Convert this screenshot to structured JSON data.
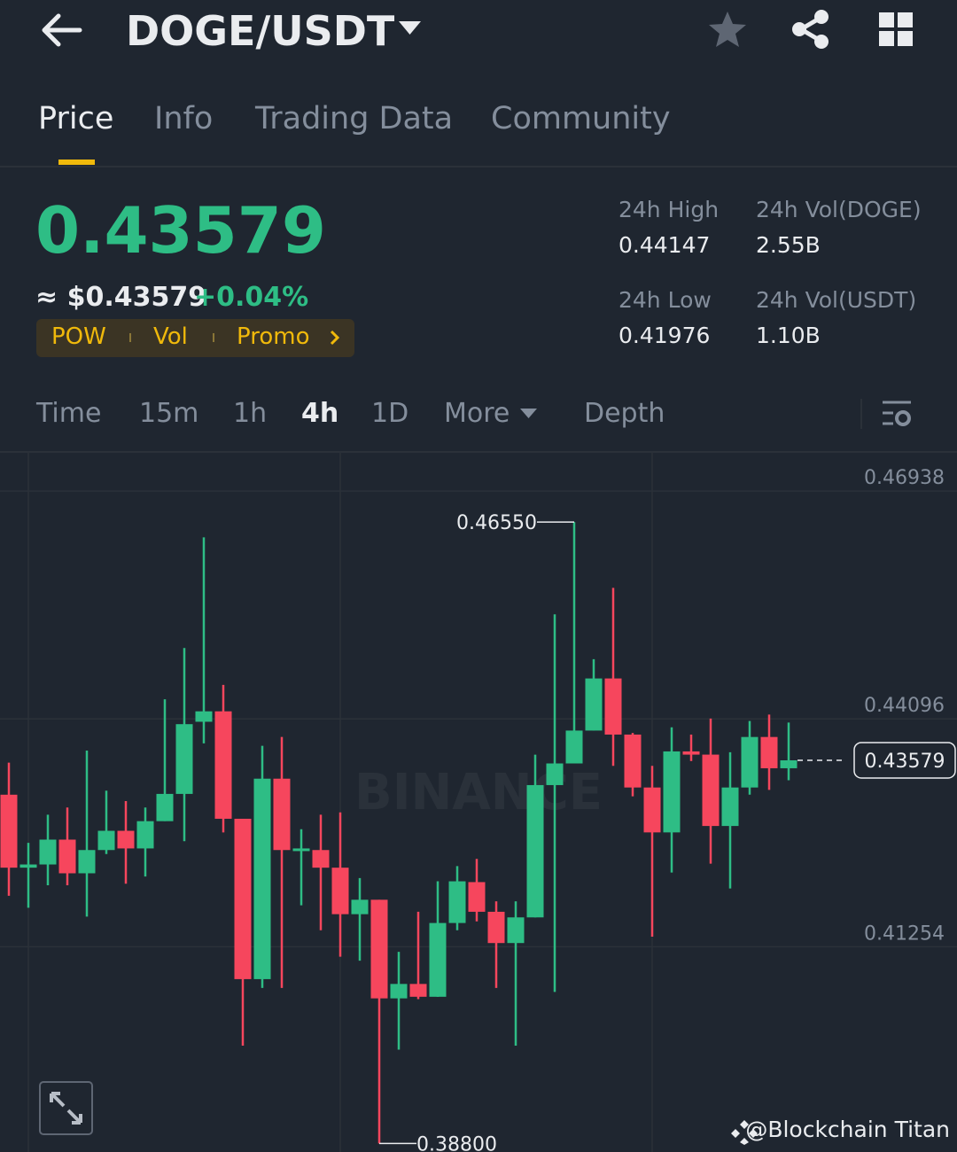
{
  "header": {
    "pair": "DOGE/USDT"
  },
  "tabs": [
    "Price",
    "Info",
    "Trading Data",
    "Community"
  ],
  "price": {
    "last": "0.43579",
    "fiat": "≈ $0.43579",
    "change": "+0.04%"
  },
  "tags": [
    "POW",
    "Vol",
    "Promo"
  ],
  "stats": [
    {
      "label": "24h High",
      "value": "0.44147"
    },
    {
      "label": "24h Vol(DOGE)",
      "value": "2.55B"
    },
    {
      "label": "24h Low",
      "value": "0.41976"
    },
    {
      "label": "24h Vol(USDT)",
      "value": "1.10B"
    }
  ],
  "intervals": [
    "Time",
    "15m",
    "1h",
    "4h",
    "1D",
    "More",
    "Depth"
  ],
  "watermark": "BINANCE",
  "credit": "@Blockchain Titan",
  "chart_data": {
    "type": "candlestick",
    "open": [
      0.4315,
      0.4224,
      0.4228,
      0.4259,
      0.4217,
      0.4246,
      0.427,
      0.4248,
      0.4282,
      0.4316,
      0.4406,
      0.4419,
      0.4285,
      0.4085,
      0.4335,
      0.4245,
      0.4246,
      0.4224,
      0.4166,
      0.4184,
      0.4061,
      0.4079,
      0.4063,
      0.4155,
      0.4206,
      0.4169,
      0.413,
      0.4162,
      0.4327,
      0.4354,
      0.4395,
      0.446,
      0.439,
      0.4324,
      0.4268,
      0.4369,
      0.4365,
      0.4276,
      0.4324,
      0.4387,
      0.4348
    ],
    "high": [
      0.4355,
      0.4255,
      0.429,
      0.4299,
      0.437,
      0.432,
      0.4307,
      0.4299,
      0.4434,
      0.4498,
      0.4636,
      0.4452,
      0.4285,
      0.4376,
      0.4387,
      0.4272,
      0.429,
      0.4293,
      0.4211,
      0.4184,
      0.4119,
      0.4169,
      0.4207,
      0.4226,
      0.4235,
      0.4182,
      0.4182,
      0.4365,
      0.454,
      0.4655,
      0.4484,
      0.4573,
      0.4392,
      0.4351,
      0.4399,
      0.439,
      0.441,
      0.4368,
      0.4407,
      0.4415,
      0.4405
    ],
    "low": [
      0.4189,
      0.4174,
      0.4202,
      0.4202,
      0.4163,
      0.4241,
      0.4204,
      0.4213,
      0.4282,
      0.4257,
      0.4379,
      0.4268,
      0.4002,
      0.4074,
      0.4074,
      0.4177,
      0.4146,
      0.4113,
      0.4108,
      0.388,
      0.3997,
      0.406,
      0.4063,
      0.4146,
      0.4157,
      0.4074,
      0.4002,
      0.4162,
      0.4069,
      0.4354,
      0.4395,
      0.4351,
      0.4313,
      0.4138,
      0.4218,
      0.4357,
      0.4229,
      0.4198,
      0.4315,
      0.4321,
      0.4333
    ],
    "close": [
      0.4224,
      0.4228,
      0.4259,
      0.4217,
      0.4246,
      0.427,
      0.4248,
      0.4282,
      0.4316,
      0.4403,
      0.4419,
      0.4285,
      0.4085,
      0.4335,
      0.4246,
      0.4248,
      0.4224,
      0.4166,
      0.4184,
      0.4061,
      0.4079,
      0.4063,
      0.4155,
      0.4207,
      0.4169,
      0.413,
      0.4162,
      0.4327,
      0.4354,
      0.4395,
      0.446,
      0.439,
      0.4324,
      0.4268,
      0.4369,
      0.4365,
      0.4276,
      0.4324,
      0.4387,
      0.4348,
      0.43579
    ],
    "colors": {
      "up": "#2ebd85",
      "down": "#f6465d"
    },
    "ylim": [
      0.38694,
      0.47425
    ],
    "yticks": [
      0.46938,
      0.44096,
      0.41254
    ],
    "grid": true,
    "max_label": "0.46550",
    "min_label": "0.38800",
    "last_label": "0.43579"
  }
}
